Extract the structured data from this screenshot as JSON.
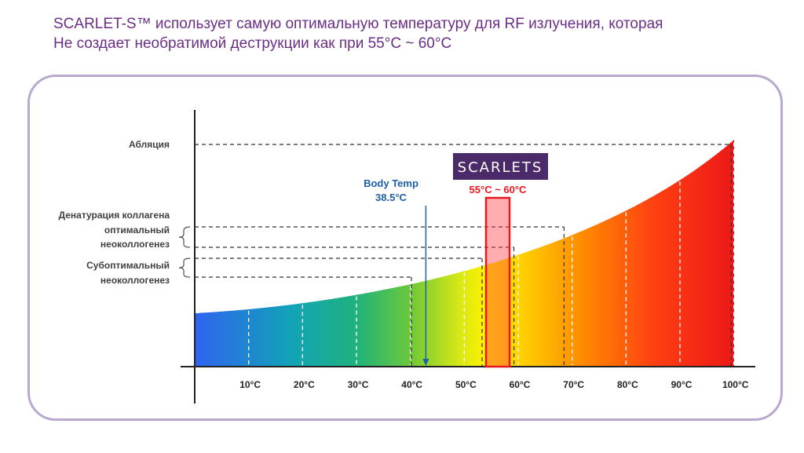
{
  "title": {
    "line1": "SCARLET-S™ использует самую оптимальную температуру для RF излучения, которая",
    "line2": "Не создает необратимой деструкции как при 55°C ~  60°C"
  },
  "chart_data": {
    "type": "area",
    "x_ticks": [
      "10°C",
      "20°C",
      "30°C",
      "40°C",
      "50°C",
      "60°C",
      "70°C",
      "80°C",
      "90°C",
      "100°C"
    ],
    "levels": {
      "ablation": "Абляция",
      "collagen_title": "Денатурация коллагена",
      "optimal_line1": "оптимальный",
      "optimal_line2": "неоколлогенез",
      "suboptimal_line1": "Субоптимальный",
      "suboptimal_line2": "неоколлогенез"
    },
    "body_temp": {
      "label": "Body Temp",
      "value": "38.5°C",
      "x": 38.5
    },
    "highlight": {
      "label": "55°C ~  60°C",
      "from": 55,
      "to": 60,
      "color": "#e8191e"
    },
    "logo": "SCARLETS",
    "colors": {
      "axis": "#222222",
      "body_temp": "#1f5fa6",
      "logo_bg": "#4b2a6a"
    }
  }
}
